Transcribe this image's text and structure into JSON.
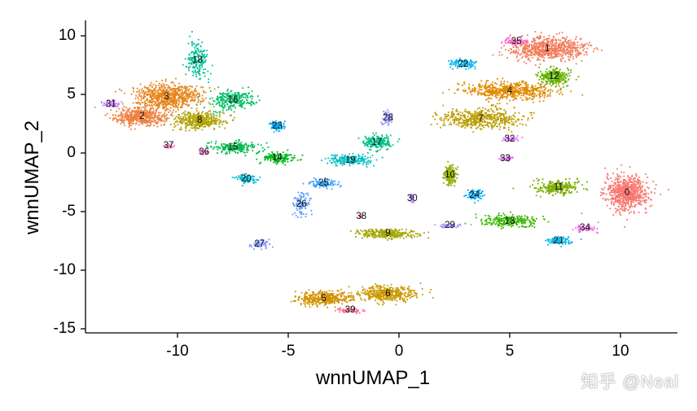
{
  "chart_data": {
    "type": "scatter",
    "title": "",
    "xlabel": "wnnUMAP_1",
    "ylabel": "wnnUMAP_2",
    "xlim": [
      -14.2,
      12.6
    ],
    "ylim": [
      -15.2,
      11.2
    ],
    "xticks": [
      -10,
      -5,
      0,
      5,
      10
    ],
    "xtick_labels": [
      "-10",
      "-5",
      "0",
      "5",
      "10"
    ],
    "yticks": [
      10,
      5,
      0,
      -5,
      -10,
      -15
    ],
    "ytick_labels": [
      "10",
      "5",
      "0",
      "-5",
      "-10",
      "-15"
    ],
    "grid": false,
    "legend": "none (cluster labels drawn on plot)",
    "clusters": [
      {
        "id": "0",
        "x": 10.3,
        "y": -3.4,
        "color": "#F8766D"
      },
      {
        "id": "1",
        "x": 6.7,
        "y": 8.9,
        "color": "#F37B59"
      },
      {
        "id": "2",
        "x": -11.6,
        "y": 3.1,
        "color": "#ED8141"
      },
      {
        "id": "3",
        "x": -10.5,
        "y": 4.8,
        "color": "#E7851E"
      },
      {
        "id": "4",
        "x": 5.0,
        "y": 5.3,
        "color": "#E08B00"
      },
      {
        "id": "5",
        "x": -3.4,
        "y": -12.4,
        "color": "#D39200"
      },
      {
        "id": "6",
        "x": -0.5,
        "y": -12.0,
        "color": "#C99800"
      },
      {
        "id": "7",
        "x": 3.7,
        "y": 2.9,
        "color": "#BB9D00"
      },
      {
        "id": "8",
        "x": -9.0,
        "y": 2.8,
        "color": "#AEA200"
      },
      {
        "id": "9",
        "x": -0.5,
        "y": -6.9,
        "color": "#A3A500"
      },
      {
        "id": "10",
        "x": 2.3,
        "y": -1.9,
        "color": "#93AA00"
      },
      {
        "id": "11",
        "x": 7.2,
        "y": -2.9,
        "color": "#7CAE00"
      },
      {
        "id": "12",
        "x": 7.0,
        "y": 6.5,
        "color": "#64B200"
      },
      {
        "id": "13",
        "x": 5.0,
        "y": -5.8,
        "color": "#39B600"
      },
      {
        "id": "14",
        "x": -5.5,
        "y": -0.4,
        "color": "#00B81F"
      },
      {
        "id": "15",
        "x": -7.5,
        "y": 0.5,
        "color": "#00BB4E"
      },
      {
        "id": "16",
        "x": -7.5,
        "y": 4.5,
        "color": "#00BE67"
      },
      {
        "id": "17",
        "x": -1.0,
        "y": 0.9,
        "color": "#00C08B"
      },
      {
        "id": "18",
        "x": -9.1,
        "y": 7.9,
        "color": "#00C19A"
      },
      {
        "id": "19",
        "x": -2.2,
        "y": -0.6,
        "color": "#00BFC4"
      },
      {
        "id": "20",
        "x": -6.9,
        "y": -2.2,
        "color": "#00BCD8"
      },
      {
        "id": "21",
        "x": 7.2,
        "y": -7.5,
        "color": "#00B8E7"
      },
      {
        "id": "22",
        "x": 2.9,
        "y": 7.6,
        "color": "#00B4F0"
      },
      {
        "id": "23",
        "x": -5.5,
        "y": 2.3,
        "color": "#00ADFA"
      },
      {
        "id": "24",
        "x": 3.4,
        "y": -3.6,
        "color": "#00A9FF"
      },
      {
        "id": "25",
        "x": -3.4,
        "y": -2.6,
        "color": "#35A2FF"
      },
      {
        "id": "26",
        "x": -4.4,
        "y": -4.4,
        "color": "#619CFF"
      },
      {
        "id": "27",
        "x": -6.3,
        "y": -7.8,
        "color": "#7F96FF"
      },
      {
        "id": "28",
        "x": -0.5,
        "y": 3.0,
        "color": "#9590FF"
      },
      {
        "id": "29",
        "x": 2.3,
        "y": -6.2,
        "color": "#A58AFF"
      },
      {
        "id": "30",
        "x": 0.6,
        "y": -3.9,
        "color": "#B983FF"
      },
      {
        "id": "31",
        "x": -13.0,
        "y": 4.2,
        "color": "#C77CFF"
      },
      {
        "id": "32",
        "x": 5.0,
        "y": 1.2,
        "color": "#D774FD"
      },
      {
        "id": "33",
        "x": 4.8,
        "y": -0.5,
        "color": "#E76BF3"
      },
      {
        "id": "34",
        "x": 8.4,
        "y": -6.4,
        "color": "#F365E6"
      },
      {
        "id": "35",
        "x": 5.3,
        "y": 9.5,
        "color": "#FA62DB"
      },
      {
        "id": "36",
        "x": -8.8,
        "y": 0.1,
        "color": "#FD61D1"
      },
      {
        "id": "37",
        "x": -10.4,
        "y": 0.6,
        "color": "#FF64B0"
      },
      {
        "id": "38",
        "x": -1.7,
        "y": -5.4,
        "color": "#FF67A4"
      },
      {
        "id": "39",
        "x": -2.2,
        "y": -13.4,
        "color": "#FF6C91"
      }
    ]
  },
  "watermark": "知乎 @Neal"
}
